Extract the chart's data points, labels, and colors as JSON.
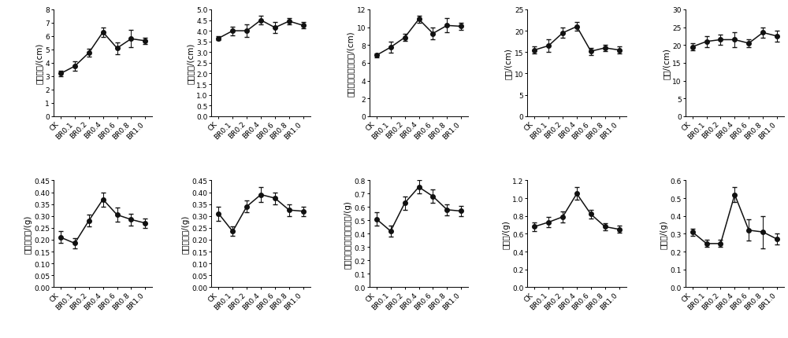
{
  "x_labels": [
    "CK",
    "BR0.1",
    "BR0.2",
    "BR0.4",
    "BR0.6",
    "BR0.8",
    "BR1.0"
  ],
  "subplots": [
    {
      "ylabel": "中胚轴长/(cm)",
      "ylim": [
        0,
        8
      ],
      "yticks": [
        0,
        1,
        2,
        3,
        4,
        5,
        6,
        7,
        8
      ],
      "values": [
        3.2,
        3.75,
        4.75,
        6.3,
        5.1,
        5.8,
        5.65
      ],
      "errors": [
        0.22,
        0.35,
        0.28,
        0.35,
        0.45,
        0.65,
        0.25
      ]
    },
    {
      "ylabel": "胚芽鞘长/(cm)",
      "ylim": [
        0,
        5
      ],
      "yticks": [
        0,
        0.5,
        1.0,
        1.5,
        2.0,
        2.5,
        3.0,
        3.5,
        4.0,
        4.5,
        5.0
      ],
      "values": [
        3.65,
        4.0,
        4.0,
        4.5,
        4.15,
        4.45,
        4.25
      ],
      "errors": [
        0.1,
        0.2,
        0.3,
        0.2,
        0.25,
        0.15,
        0.15
      ]
    },
    {
      "ylabel": "中胚轴与胚芽鞘之和/(cm)",
      "ylim": [
        0,
        12
      ],
      "yticks": [
        0,
        2,
        4,
        6,
        8,
        10,
        12
      ],
      "values": [
        6.85,
        7.75,
        8.85,
        10.9,
        9.3,
        10.2,
        10.1
      ],
      "errors": [
        0.2,
        0.6,
        0.4,
        0.4,
        0.7,
        0.8,
        0.4
      ]
    },
    {
      "ylabel": "苗长/(cm)",
      "ylim": [
        0,
        25
      ],
      "yticks": [
        0,
        5,
        10,
        15,
        20,
        25
      ],
      "values": [
        15.5,
        16.5,
        19.5,
        21.0,
        15.2,
        16.0,
        15.5
      ],
      "errors": [
        0.8,
        1.5,
        1.2,
        1.0,
        0.8,
        0.8,
        0.8
      ]
    },
    {
      "ylabel": "根长/(cm)",
      "ylim": [
        0,
        30
      ],
      "yticks": [
        0,
        5,
        10,
        15,
        20,
        25,
        30
      ],
      "values": [
        19.5,
        21.0,
        21.5,
        21.5,
        20.5,
        23.5,
        22.5
      ],
      "errors": [
        1.0,
        1.5,
        1.5,
        2.0,
        1.0,
        1.5,
        1.5
      ]
    },
    {
      "ylabel": "中胚轴鲜重/(g)",
      "ylim": [
        0,
        0.45
      ],
      "yticks": [
        0,
        0.05,
        0.1,
        0.15,
        0.2,
        0.25,
        0.3,
        0.35,
        0.4,
        0.45
      ],
      "values": [
        0.21,
        0.185,
        0.28,
        0.37,
        0.305,
        0.285,
        0.27
      ],
      "errors": [
        0.025,
        0.02,
        0.025,
        0.03,
        0.03,
        0.025,
        0.02
      ]
    },
    {
      "ylabel": "胚芽鞘鲜重/(g)",
      "ylim": [
        0,
        0.45
      ],
      "yticks": [
        0,
        0.05,
        0.1,
        0.15,
        0.2,
        0.25,
        0.3,
        0.35,
        0.4,
        0.45
      ],
      "values": [
        0.31,
        0.235,
        0.34,
        0.39,
        0.375,
        0.325,
        0.32
      ],
      "errors": [
        0.03,
        0.02,
        0.025,
        0.03,
        0.025,
        0.025,
        0.02
      ]
    },
    {
      "ylabel": "中胚轴与胚芽鞘鲜重之和/(g)",
      "ylim": [
        0,
        0.8
      ],
      "yticks": [
        0,
        0.1,
        0.2,
        0.3,
        0.4,
        0.5,
        0.6,
        0.7,
        0.8
      ],
      "values": [
        0.51,
        0.42,
        0.63,
        0.75,
        0.68,
        0.58,
        0.57
      ],
      "errors": [
        0.05,
        0.04,
        0.05,
        0.05,
        0.05,
        0.04,
        0.04
      ]
    },
    {
      "ylabel": "苗鲜重/(g)",
      "ylim": [
        0,
        1.2
      ],
      "yticks": [
        0,
        0.2,
        0.4,
        0.6,
        0.8,
        1.0,
        1.2
      ],
      "values": [
        0.68,
        0.73,
        0.79,
        1.05,
        0.82,
        0.68,
        0.65
      ],
      "errors": [
        0.05,
        0.06,
        0.06,
        0.07,
        0.05,
        0.04,
        0.04
      ]
    },
    {
      "ylabel": "根鲜重/(g)",
      "ylim": [
        0,
        0.6
      ],
      "yticks": [
        0,
        0.1,
        0.2,
        0.3,
        0.4,
        0.5,
        0.6
      ],
      "values": [
        0.31,
        0.245,
        0.245,
        0.52,
        0.32,
        0.31,
        0.27
      ],
      "errors": [
        0.02,
        0.02,
        0.02,
        0.04,
        0.06,
        0.09,
        0.03
      ]
    }
  ],
  "marker": "o",
  "markersize": 4,
  "linewidth": 1.1,
  "color": "#111111",
  "capsize": 2.5,
  "tick_fontsize": 6.5,
  "label_fontsize": 7.5,
  "figsize": [
    10.0,
    4.31
  ],
  "dpi": 100
}
